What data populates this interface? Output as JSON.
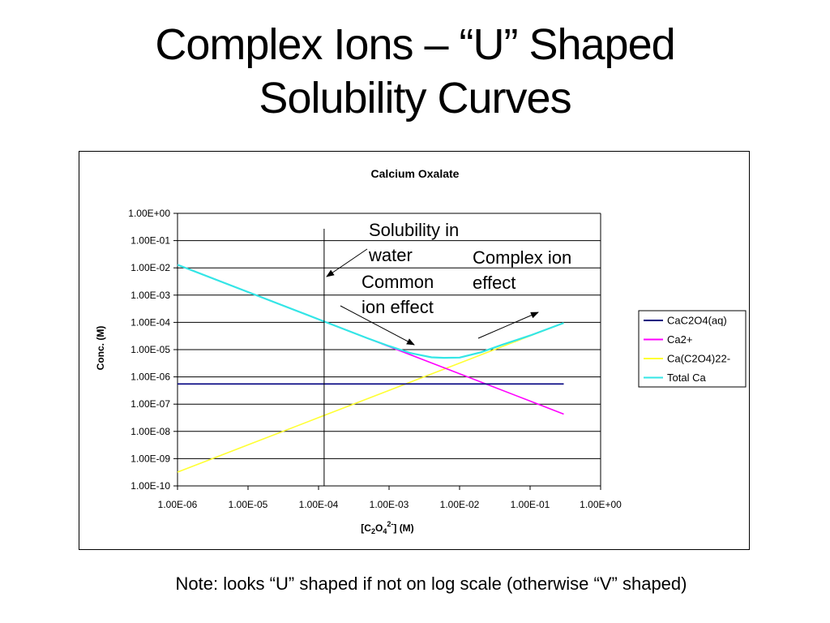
{
  "slide": {
    "title_line1": "Complex Ions – “U” Shaped",
    "title_line2": "Solubility Curves",
    "note": "Note: looks “U” shaped if not on log scale (otherwise “V” shaped)"
  },
  "chart_data": {
    "type": "line",
    "title": "Calcium Oxalate",
    "ylabel": "Conc. (M)",
    "xlabel_base": "[C",
    "xlabel_sub1": "2",
    "xlabel_o": "O",
    "xlabel_sub2": "4",
    "xlabel_sup": "2-",
    "xlabel_tail": "] (M)",
    "x_scale": "log",
    "y_scale": "log",
    "xlim": [
      1e-06,
      1
    ],
    "ylim": [
      1e-10,
      1
    ],
    "x_ticks": [
      {
        "value": 1e-06,
        "label": "1.00E-06"
      },
      {
        "value": 1e-05,
        "label": "1.00E-05"
      },
      {
        "value": 0.0001,
        "label": "1.00E-04"
      },
      {
        "value": 0.001,
        "label": "1.00E-03"
      },
      {
        "value": 0.01,
        "label": "1.00E-02"
      },
      {
        "value": 0.1,
        "label": "1.00E-01"
      },
      {
        "value": 1,
        "label": "1.00E+00"
      }
    ],
    "y_ticks": [
      {
        "value": 1,
        "label": "1.00E+00"
      },
      {
        "value": 0.1,
        "label": "1.00E-01"
      },
      {
        "value": 0.01,
        "label": "1.00E-02"
      },
      {
        "value": 0.001,
        "label": "1.00E-03"
      },
      {
        "value": 0.0001,
        "label": "1.00E-04"
      },
      {
        "value": 1e-05,
        "label": "1.00E-05"
      },
      {
        "value": 1e-06,
        "label": "1.00E-06"
      },
      {
        "value": 1e-07,
        "label": "1.00E-07"
      },
      {
        "value": 1e-08,
        "label": "1.00E-08"
      },
      {
        "value": 1e-09,
        "label": "1.00E-09"
      },
      {
        "value": 1e-10,
        "label": "1.00E-10"
      }
    ],
    "grid": "horizontal",
    "legend_position": "right",
    "series": [
      {
        "name": "CaC2O4(aq)",
        "color": "#000080",
        "x": [
          1e-06,
          0.3
        ],
        "y": [
          5.5e-07,
          5.5e-07
        ]
      },
      {
        "name": "Ca2+",
        "color": "#ff00ff",
        "x": [
          1e-06,
          1e-05,
          0.0001,
          0.001,
          0.01,
          0.1,
          0.3
        ],
        "y": [
          0.013,
          0.0013,
          0.00013,
          1.3e-05,
          1.3e-06,
          1.3e-07,
          4.3e-08
        ]
      },
      {
        "name": "Ca(C2O4)22-",
        "color": "#ffff33",
        "x": [
          1e-06,
          1e-05,
          0.0001,
          0.001,
          0.01,
          0.1,
          0.3
        ],
        "y": [
          3.2e-10,
          3.2e-09,
          3.2e-08,
          3.2e-07,
          3.2e-06,
          3.2e-05,
          9.5e-05
        ]
      },
      {
        "name": "Total Ca",
        "color": "#33e6e6",
        "x": [
          1e-06,
          1e-05,
          0.0001,
          0.0005,
          0.001,
          0.002,
          0.004,
          0.006,
          0.01,
          0.02,
          0.04,
          0.1,
          0.3
        ],
        "y": [
          0.013,
          0.0013,
          0.00013,
          2.6e-05,
          1.35e-05,
          7.5e-06,
          5.2e-06,
          5e-06,
          5.1e-06,
          8e-06,
          1.5e-05,
          3.3e-05,
          9.5e-05
        ]
      }
    ],
    "annotations": [
      {
        "id": "solubility",
        "lines": [
          "Solubility in",
          "water"
        ]
      },
      {
        "id": "common",
        "lines": [
          "Common",
          "ion effect"
        ]
      },
      {
        "id": "complex",
        "lines": [
          "Complex ion",
          "effect"
        ]
      }
    ],
    "vertical_marker_x": 0.00012
  }
}
